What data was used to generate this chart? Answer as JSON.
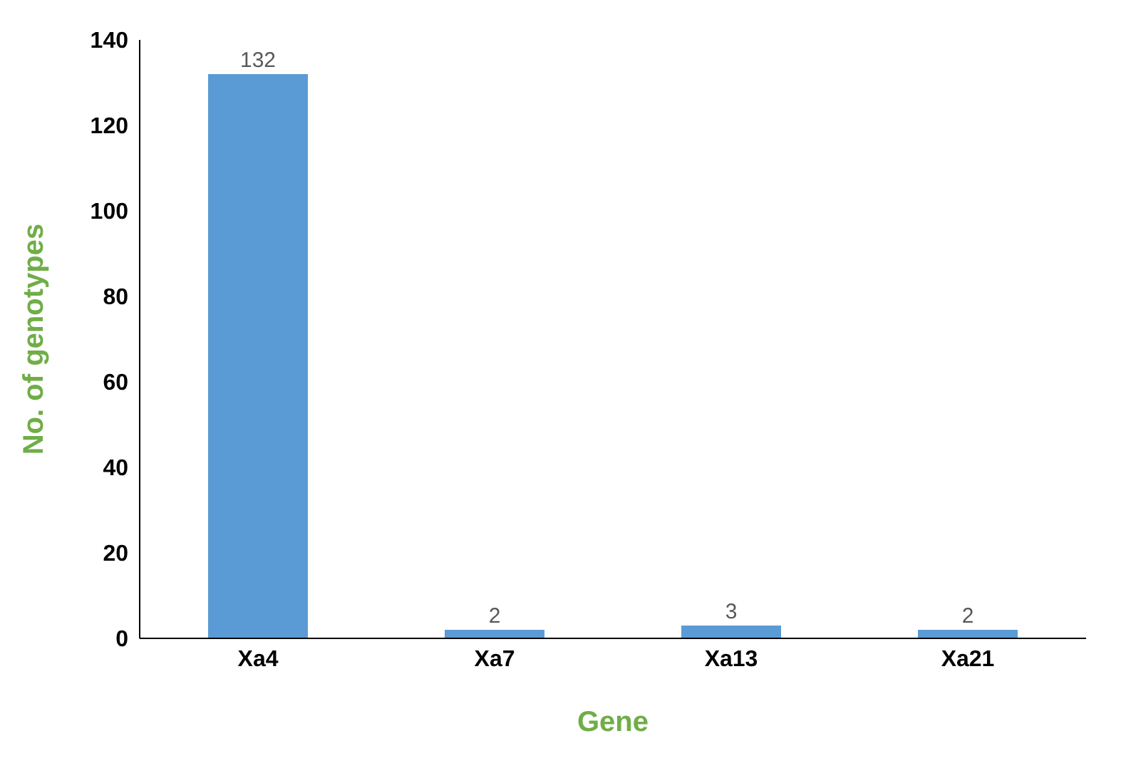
{
  "chart_data": {
    "type": "bar",
    "xlabel": "Gene",
    "ylabel": "No. of genotypes",
    "categories": [
      "Xa4",
      "Xa7",
      "Xa13",
      "Xa21"
    ],
    "values": [
      132,
      2,
      3,
      2
    ],
    "color": "#5b9bd5",
    "ylim": [
      0,
      140
    ],
    "yticks": [
      0,
      20,
      40,
      60,
      80,
      100,
      120,
      140
    ],
    "data_labels": true
  }
}
